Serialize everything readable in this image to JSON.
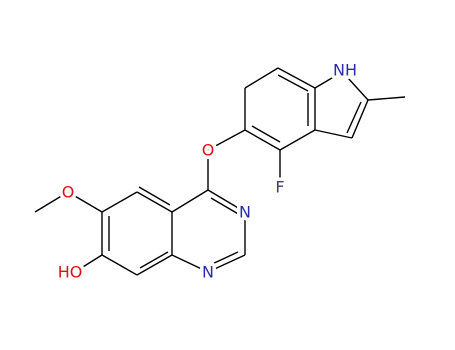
{
  "atoms": [
    {
      "label": "NH"
    },
    {
      "label": "O"
    },
    {
      "label": "F"
    },
    {
      "label": "N"
    },
    {
      "label": "N"
    },
    {
      "label": "O"
    },
    {
      "label": "HO"
    }
  ]
}
